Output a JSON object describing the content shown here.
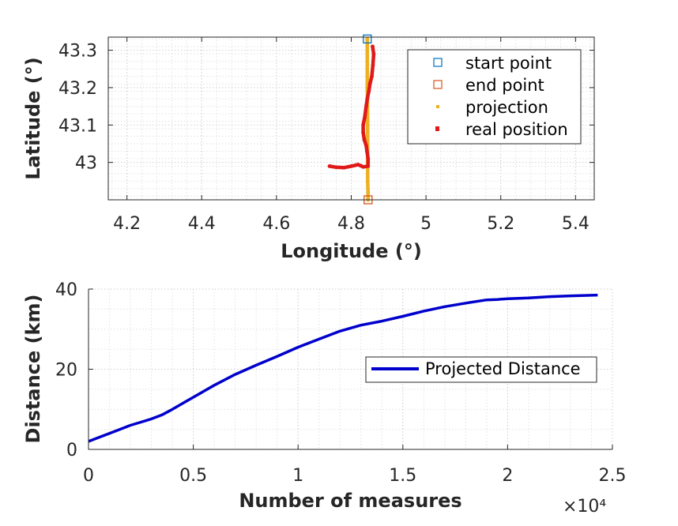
{
  "chart_data": [
    {
      "type": "line",
      "xlabel": "Longitude (°)",
      "ylabel": "Latitude (°)",
      "xlim": [
        4.15,
        5.45
      ],
      "ylim": [
        42.9,
        43.335
      ],
      "xticks": [
        4.2,
        4.4,
        4.6,
        4.8,
        5,
        5.2,
        5.4
      ],
      "xtick_labels": [
        "4.2",
        "4.4",
        "4.6",
        "4.8",
        "5",
        "5.2",
        "5.4"
      ],
      "yticks": [
        43,
        43.1,
        43.2,
        43.3
      ],
      "ytick_labels": [
        "43",
        "43.1",
        "43.2",
        "43.3"
      ],
      "grid": true,
      "minor_grid": true,
      "legend_position": "top-right",
      "series": [
        {
          "name": "start point",
          "kind": "marker",
          "marker": "square",
          "color": "#0072bd",
          "x": [
            4.843
          ],
          "y": [
            43.33
          ]
        },
        {
          "name": "end point",
          "kind": "marker",
          "marker": "square",
          "color": "#d95319",
          "x": [
            4.845
          ],
          "y": [
            42.9
          ]
        },
        {
          "name": "projection",
          "kind": "dots",
          "color": "#edb120",
          "x": [
            4.843,
            4.843,
            4.844,
            4.844,
            4.844,
            4.845,
            4.845
          ],
          "y": [
            43.33,
            43.2,
            43.1,
            43.0,
            42.95,
            42.92,
            42.9
          ]
        },
        {
          "name": "real position",
          "kind": "dots",
          "color": "#e01a1a",
          "x": [
            4.857,
            4.86,
            4.858,
            4.855,
            4.85,
            4.847,
            4.843,
            4.84,
            4.836,
            4.832,
            4.832,
            4.835,
            4.84,
            4.842,
            4.845,
            4.845,
            4.832,
            4.826,
            4.818,
            4.8,
            4.78,
            4.76,
            4.742
          ],
          "y": [
            43.31,
            43.29,
            43.26,
            43.23,
            43.21,
            43.19,
            43.17,
            43.15,
            43.12,
            43.1,
            43.08,
            43.06,
            43.045,
            43.03,
            43.01,
            42.99,
            42.988,
            42.991,
            42.994,
            42.99,
            42.986,
            42.987,
            42.99
          ]
        }
      ]
    },
    {
      "type": "line",
      "xlabel": "Number of measures",
      "ylabel": "Distance (km)",
      "x_exponent_label": "×10⁴",
      "xlim": [
        0,
        2.5
      ],
      "ylim": [
        0,
        40
      ],
      "xticks": [
        0,
        0.5,
        1,
        1.5,
        2,
        2.5
      ],
      "xtick_labels": [
        "0",
        "0.5",
        "1",
        "1.5",
        "2",
        "2.5"
      ],
      "yticks": [
        0,
        20,
        40
      ],
      "ytick_labels": [
        "0",
        "20",
        "40"
      ],
      "grid": true,
      "minor_grid": true,
      "legend_position": "right",
      "series": [
        {
          "name": "Projected Distance",
          "color": "#0000cc",
          "x": [
            0,
            0.05,
            0.1,
            0.15,
            0.2,
            0.25,
            0.3,
            0.35,
            0.4,
            0.45,
            0.5,
            0.55,
            0.6,
            0.7,
            0.8,
            0.9,
            1.0,
            1.1,
            1.2,
            1.3,
            1.4,
            1.5,
            1.6,
            1.7,
            1.8,
            1.9,
            1.95,
            2.0,
            2.1,
            2.2,
            2.3,
            2.43
          ],
          "y": [
            2,
            3,
            4,
            5,
            6,
            6.8,
            7.6,
            8.6,
            10,
            11.5,
            13,
            14.5,
            16,
            18.7,
            21,
            23.2,
            25.5,
            27.5,
            29.5,
            31,
            32,
            33.2,
            34.5,
            35.6,
            36.5,
            37.3,
            37.4,
            37.6,
            37.8,
            38.1,
            38.3,
            38.5
          ]
        }
      ]
    }
  ]
}
